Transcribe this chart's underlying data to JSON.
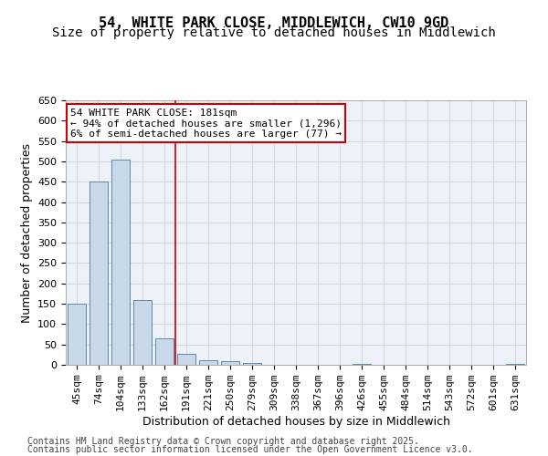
{
  "title_line1": "54, WHITE PARK CLOSE, MIDDLEWICH, CW10 9GD",
  "title_line2": "Size of property relative to detached houses in Middlewich",
  "xlabel": "Distribution of detached houses by size in Middlewich",
  "ylabel": "Number of detached properties",
  "categories": [
    "45sqm",
    "74sqm",
    "104sqm",
    "133sqm",
    "162sqm",
    "191sqm",
    "221sqm",
    "250sqm",
    "279sqm",
    "309sqm",
    "338sqm",
    "367sqm",
    "396sqm",
    "426sqm",
    "455sqm",
    "484sqm",
    "514sqm",
    "543sqm",
    "572sqm",
    "601sqm",
    "631sqm"
  ],
  "values": [
    150,
    450,
    505,
    160,
    65,
    28,
    12,
    9,
    4,
    0,
    0,
    0,
    0,
    3,
    0,
    0,
    0,
    0,
    0,
    0,
    3
  ],
  "bar_color": "#c9d9ea",
  "bar_edgecolor": "#5a8ab0",
  "grid_color": "#d0d8e8",
  "bg_color": "#eef2f8",
  "vline_x": 4.5,
  "vline_color": "#cc0000",
  "annotation_text": "54 WHITE PARK CLOSE: 181sqm\n← 94% of detached houses are smaller (1,296)\n6% of semi-detached houses are larger (77) →",
  "annotation_box_color": "#cc0000",
  "ylim": [
    0,
    650
  ],
  "yticks": [
    0,
    50,
    100,
    150,
    200,
    250,
    300,
    350,
    400,
    450,
    500,
    550,
    600,
    650
  ],
  "footer_line1": "Contains HM Land Registry data © Crown copyright and database right 2025.",
  "footer_line2": "Contains public sector information licensed under the Open Government Licence v3.0.",
  "title_fontsize": 11,
  "subtitle_fontsize": 10,
  "axis_label_fontsize": 9,
  "tick_fontsize": 8,
  "annotation_fontsize": 8,
  "footer_fontsize": 7
}
